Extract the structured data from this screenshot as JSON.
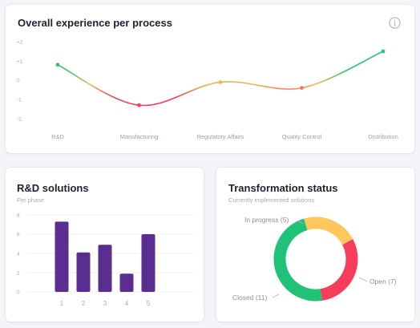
{
  "colors": {
    "accent_red": "#f73d5c",
    "accent_green": "#2fc573",
    "accent_orange": "#fdb74a",
    "bar_purple": "#5a2d91",
    "donut_yellow": "#fdc75c",
    "donut_red": "#f73d5c",
    "donut_green": "#1fc277"
  },
  "overall": {
    "title": "Overall experience per process",
    "info_icon": "info-circle-icon"
  },
  "rd": {
    "title": "R&D solutions",
    "subtitle": "Per phase"
  },
  "transformation": {
    "title": "Transformation status",
    "subtitle": "Currently implemented solutions"
  },
  "chart_data": [
    {
      "type": "line",
      "title": "Overall experience per process",
      "categories": [
        "R&D",
        "Manufacturing",
        "Regulatory Affairs",
        "Quality Control",
        "Distribution"
      ],
      "values": [
        0.8,
        -1.3,
        -0.1,
        -0.4,
        1.5
      ],
      "ylim": [
        -2,
        2
      ],
      "yticks": [
        "+2",
        "+1",
        "0",
        "-1",
        "-2"
      ],
      "grid": false,
      "smooth": true
    },
    {
      "type": "bar",
      "title": "R&D solutions",
      "subtitle": "Per phase",
      "categories": [
        "1",
        "2",
        "3",
        "4",
        "5"
      ],
      "values": [
        7.3,
        4.1,
        4.9,
        1.9,
        6.0
      ],
      "ylim": [
        0,
        8
      ],
      "yticks": [
        "0",
        "2",
        "4",
        "6",
        "8"
      ],
      "grid": true
    },
    {
      "type": "pie",
      "donut": true,
      "title": "Transformation status",
      "subtitle": "Currently implemented solutions",
      "slices": [
        {
          "label": "In progress (5)",
          "value": 5
        },
        {
          "label": "Open (7)",
          "value": 7
        },
        {
          "label": "Closed (11)",
          "value": 11
        }
      ]
    }
  ]
}
